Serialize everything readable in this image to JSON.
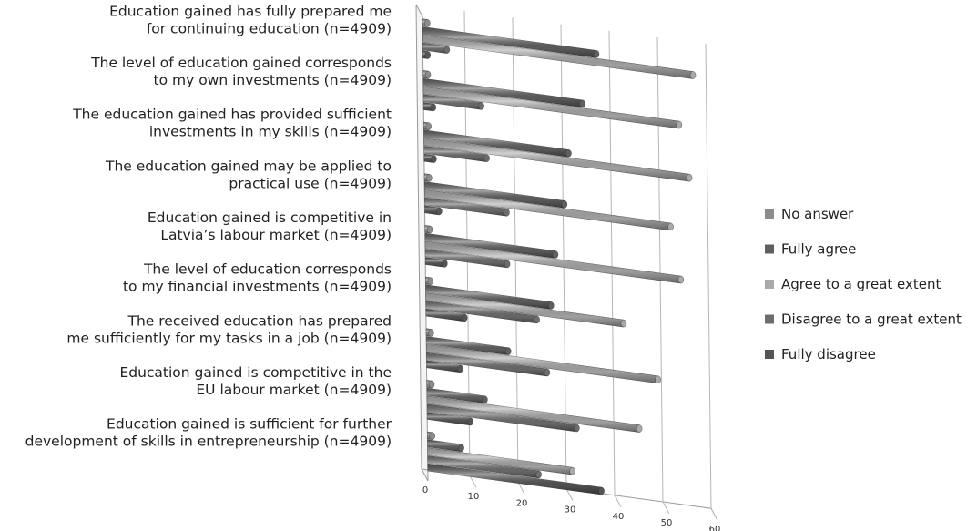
{
  "chart_data": {
    "type": "bar",
    "orientation": "horizontal",
    "style": "3d-cylinder",
    "categories": [
      [
        "Education gained has fully prepared me",
        "for continuing education (n=4909)"
      ],
      [
        "The level of education gained corresponds",
        "to my own investments (n=4909)"
      ],
      [
        "The education gained has provided sufficient",
        "investments in my skills  (n=4909)"
      ],
      [
        "The education gained may be applied to",
        "practical use  (n=4909)"
      ],
      [
        "Education gained is competitive in",
        "Latvia’s labour market (n=4909)"
      ],
      [
        "The level of education corresponds",
        "to my financial investments (n=4909)"
      ],
      [
        "The received education has prepared",
        "me sufficiently for my tasks in a job (n=4909)"
      ],
      [
        "Education gained is competitive in the",
        "EU labour market (n=4909)"
      ],
      [
        "Education gained is sufficient for further",
        "development of skills in entrepreneurship (n=4909)"
      ]
    ],
    "series": [
      {
        "name": "No answer",
        "color": "#8c8c8c",
        "values": [
          1,
          1,
          1,
          1,
          1,
          1,
          1,
          1,
          1
        ]
      },
      {
        "name": "Fully agree",
        "color": "#5f5f5f",
        "values": [
          36,
          33,
          30,
          29,
          27,
          26,
          17,
          12,
          7
        ]
      },
      {
        "name": "Agree to a great extent",
        "color": "#a9a9a9",
        "values": [
          56,
          53,
          55,
          51,
          53,
          41,
          48,
          44,
          30
        ]
      },
      {
        "name": "Disagree to a great extent",
        "color": "#6d6d6d",
        "values": [
          5,
          12,
          13,
          17,
          17,
          23,
          25,
          31,
          23
        ]
      },
      {
        "name": "Fully disagree",
        "color": "#555555",
        "values": [
          1,
          2,
          2,
          3,
          4,
          8,
          7,
          9,
          36
        ]
      }
    ],
    "xlim": [
      0,
      60
    ],
    "xticks": [
      0,
      10,
      20,
      30,
      40,
      50,
      60
    ],
    "legend_position": "right",
    "grid": true
  }
}
